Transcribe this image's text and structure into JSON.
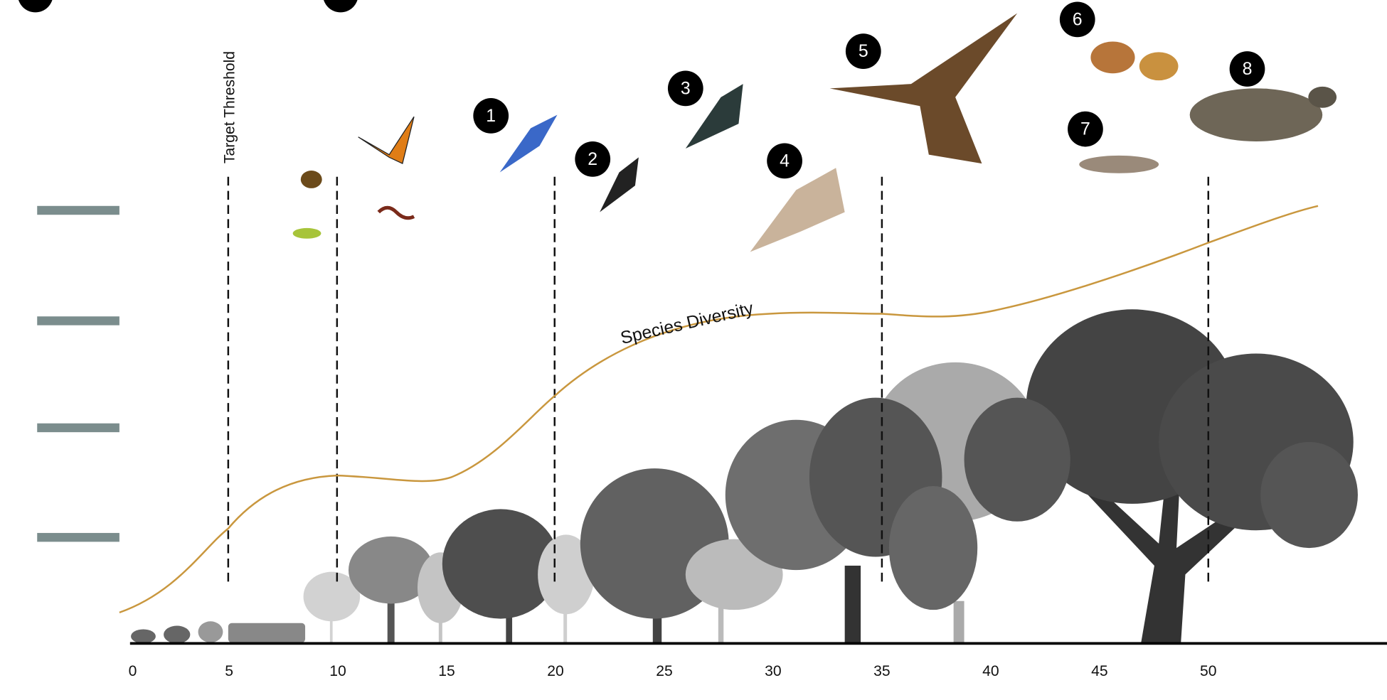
{
  "labels": {
    "target_threshold": "Target Threshold",
    "species_diversity": "Species Diversity"
  },
  "x_axis": {
    "ticks": [
      0,
      5,
      10,
      15,
      20,
      25,
      30,
      35,
      40,
      45,
      50
    ]
  },
  "markers": [
    "1",
    "2",
    "3",
    "4",
    "5",
    "6",
    "7",
    "8"
  ]
}
